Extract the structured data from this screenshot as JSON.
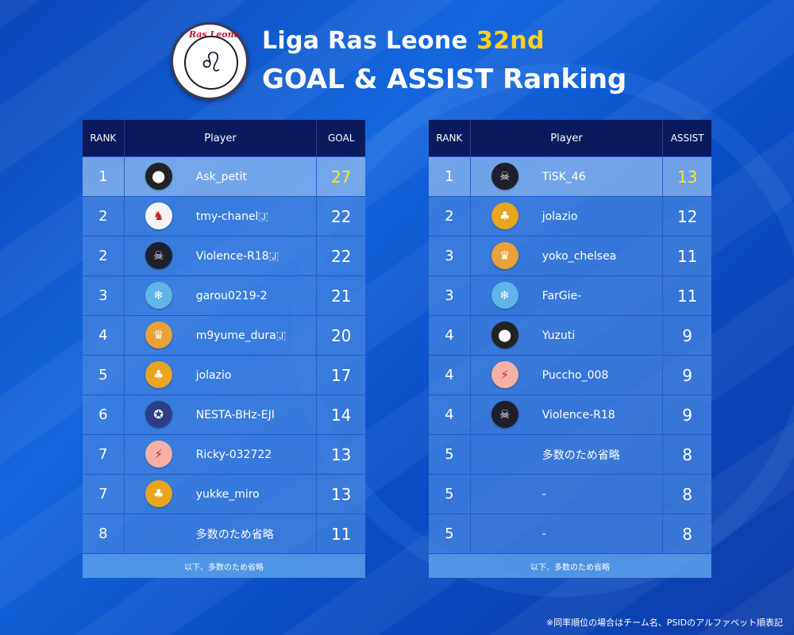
{
  "header": {
    "logo_text": "Ras Leone",
    "title_main": "Liga Ras Leone",
    "title_season": "32nd",
    "title_sub": "GOAL & ASSIST Ranking"
  },
  "goal_table": {
    "headers": {
      "rank": "RANK",
      "player": "Player",
      "value": "GOAL"
    },
    "rows": [
      {
        "rank": "1",
        "player": "Ask_petit",
        "value": "27",
        "icon": "black-club-icon",
        "icon_bg": "#222",
        "icon_glyph": "⬤"
      },
      {
        "rank": "2",
        "player": "tmy-chanel🇯",
        "value": "22",
        "icon": "silhouette-icon",
        "icon_bg": "#f4f4f4",
        "icon_glyph": "♞"
      },
      {
        "rank": "2",
        "player": "Violence-R18🇯",
        "value": "22",
        "icon": "skull-shield-icon",
        "icon_bg": "#1e1e2c",
        "icon_glyph": "☠"
      },
      {
        "rank": "3",
        "player": "garou0219-2",
        "value": "21",
        "icon": "wolf-badge-icon",
        "icon_bg": "#5fb4ea",
        "icon_glyph": "❄"
      },
      {
        "rank": "4",
        "player": "m9yume_dura🇯",
        "value": "20",
        "icon": "red-crest-icon",
        "icon_bg": "#e9a23a",
        "icon_glyph": "♛"
      },
      {
        "rank": "5",
        "player": "jolazio",
        "value": "17",
        "icon": "palm-badge-icon",
        "icon_bg": "#e7a520",
        "icon_glyph": "♣"
      },
      {
        "rank": "6",
        "player": "NESTA-BHz-EJI",
        "value": "14",
        "icon": "navy-badge-icon",
        "icon_bg": "#2b3f86",
        "icon_glyph": "✪"
      },
      {
        "rank": "7",
        "player": "Ricky-032722",
        "value": "13",
        "icon": "lightning-icon",
        "icon_bg": "#f5b1a6",
        "icon_glyph": "⚡"
      },
      {
        "rank": "7",
        "player": "yukke_miro",
        "value": "13",
        "icon": "palm-badge-icon",
        "icon_bg": "#e7a520",
        "icon_glyph": "♣"
      },
      {
        "rank": "8",
        "player": "多数のため省略",
        "value": "11",
        "icon": "",
        "icon_bg": "",
        "icon_glyph": ""
      }
    ],
    "footer": "以下、多数のため省略"
  },
  "assist_table": {
    "headers": {
      "rank": "RANK",
      "player": "Player",
      "value": "ASSIST"
    },
    "rows": [
      {
        "rank": "1",
        "player": "TiSK_46",
        "value": "13",
        "icon": "skull-shield-icon",
        "icon_bg": "#1e1e2c",
        "icon_glyph": "☠"
      },
      {
        "rank": "2",
        "player": "jolazio",
        "value": "12",
        "icon": "palm-badge-icon",
        "icon_bg": "#e7a520",
        "icon_glyph": "♣"
      },
      {
        "rank": "3",
        "player": "yoko_chelsea",
        "value": "11",
        "icon": "red-crest-icon",
        "icon_bg": "#e9a23a",
        "icon_glyph": "♛"
      },
      {
        "rank": "3",
        "player": "FarGie-",
        "value": "11",
        "icon": "wolf-badge-icon",
        "icon_bg": "#5fb4ea",
        "icon_glyph": "❄"
      },
      {
        "rank": "4",
        "player": "Yuzuti",
        "value": "9",
        "icon": "black-club-icon",
        "icon_bg": "#222",
        "icon_glyph": "⬤"
      },
      {
        "rank": "4",
        "player": "Puccho_008",
        "value": "9",
        "icon": "lightning-icon",
        "icon_bg": "#f5b1a6",
        "icon_glyph": "⚡"
      },
      {
        "rank": "4",
        "player": "Violence-R18",
        "value": "9",
        "icon": "skull-shield-icon",
        "icon_bg": "#1e1e2c",
        "icon_glyph": "☠"
      },
      {
        "rank": "5",
        "player": "多数のため省略",
        "value": "8",
        "icon": "",
        "icon_bg": "",
        "icon_glyph": ""
      },
      {
        "rank": "5",
        "player": "-",
        "value": "8",
        "icon": "",
        "icon_bg": "",
        "icon_glyph": ""
      },
      {
        "rank": "5",
        "player": "-",
        "value": "8",
        "icon": "",
        "icon_bg": "",
        "icon_glyph": ""
      }
    ],
    "footer": "以下、多数のため省略"
  },
  "footnote": "※同率順位の場合はチーム名、PSIDのアルファベット順表記",
  "colors": {
    "highlight": "#ffd21f",
    "header_bg": "#0b1a5c"
  }
}
